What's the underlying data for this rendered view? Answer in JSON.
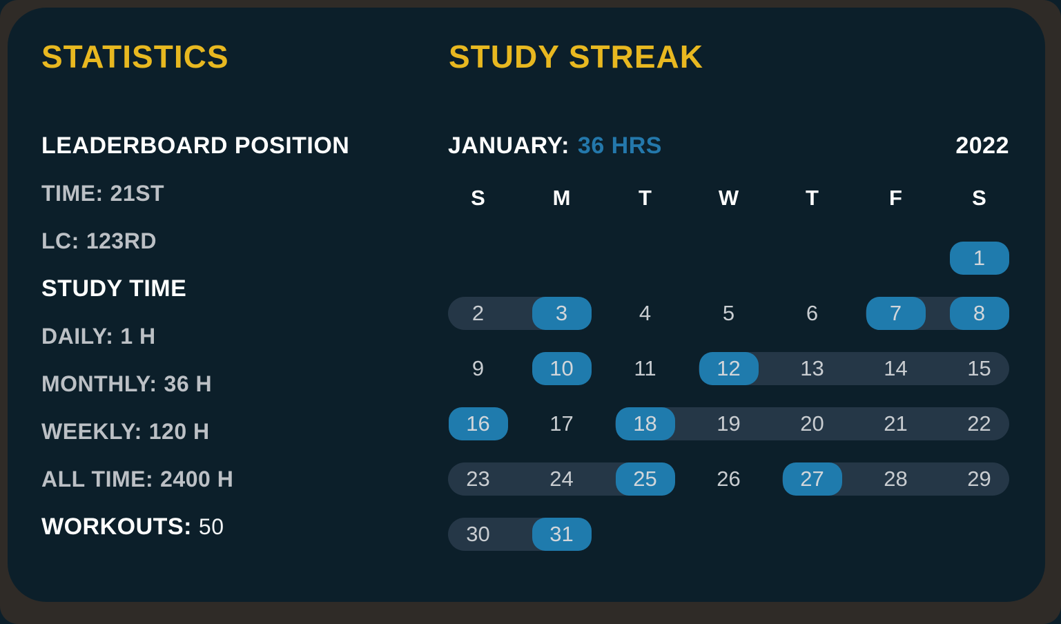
{
  "colors": {
    "frame": "#2F2B27",
    "card_background": "#0C1F2A",
    "accent_yellow": "#E8B820",
    "accent_blue": "#2478AB",
    "studied_pill_blue": "#1F7BAD",
    "streak_band": "#253747",
    "heading_text": "#FFFFFF",
    "muted_text": "#BCC0C5",
    "day_text": "#C9CDD1"
  },
  "statistics": {
    "title": "STATISTICS",
    "lines": [
      {
        "name": "leaderboard-position-heading",
        "variant": "heading",
        "label": "LEADERBOARD POSITION",
        "value": ""
      },
      {
        "name": "leaderboard-time-rank",
        "variant": "muted",
        "label": "TIME:",
        "value": "21ST"
      },
      {
        "name": "leaderboard-lc-rank",
        "variant": "muted",
        "label": "LC:",
        "value": "123RD"
      },
      {
        "name": "study-time-heading",
        "variant": "heading",
        "label": "STUDY TIME",
        "value": ""
      },
      {
        "name": "study-time-daily",
        "variant": "muted",
        "label": "DAILY:",
        "value": "1 H"
      },
      {
        "name": "study-time-monthly",
        "variant": "muted",
        "label": "MONTHLY:",
        "value": "36 H"
      },
      {
        "name": "study-time-weekly",
        "variant": "muted",
        "label": "WEEKLY:",
        "value": "120 H"
      },
      {
        "name": "study-time-alltime",
        "variant": "muted",
        "label": "ALL TIME:",
        "value": "2400 H"
      },
      {
        "name": "workouts-count",
        "variant": "mixed",
        "label": "WORKOUTS:",
        "value": "50"
      }
    ]
  },
  "streak": {
    "title": "STUDY STREAK",
    "month_label": "JANUARY:",
    "month_hours": "36 HRS",
    "year": "2022",
    "day_headers": [
      "S",
      "M",
      "T",
      "W",
      "T",
      "F",
      "S"
    ],
    "weeks": [
      {
        "bands": [],
        "days": [
          {
            "num": "1",
            "col": 7,
            "studied": true
          }
        ]
      },
      {
        "bands": [
          {
            "from": 1,
            "to": 2
          },
          {
            "from": 6,
            "to": 7
          }
        ],
        "days": [
          {
            "num": "2",
            "col": 1,
            "studied": false
          },
          {
            "num": "3",
            "col": 2,
            "studied": true
          },
          {
            "num": "4",
            "col": 3,
            "studied": false
          },
          {
            "num": "5",
            "col": 4,
            "studied": false
          },
          {
            "num": "6",
            "col": 5,
            "studied": false
          },
          {
            "num": "7",
            "col": 6,
            "studied": true
          },
          {
            "num": "8",
            "col": 7,
            "studied": true
          }
        ]
      },
      {
        "bands": [
          {
            "from": 4,
            "to": 7
          }
        ],
        "days": [
          {
            "num": "9",
            "col": 1,
            "studied": false
          },
          {
            "num": "10",
            "col": 2,
            "studied": true
          },
          {
            "num": "11",
            "col": 3,
            "studied": false
          },
          {
            "num": "12",
            "col": 4,
            "studied": true
          },
          {
            "num": "13",
            "col": 5,
            "studied": false
          },
          {
            "num": "14",
            "col": 6,
            "studied": false
          },
          {
            "num": "15",
            "col": 7,
            "studied": false
          }
        ]
      },
      {
        "bands": [
          {
            "from": 3,
            "to": 7
          }
        ],
        "days": [
          {
            "num": "16",
            "col": 1,
            "studied": true
          },
          {
            "num": "17",
            "col": 2,
            "studied": false
          },
          {
            "num": "18",
            "col": 3,
            "studied": true
          },
          {
            "num": "19",
            "col": 4,
            "studied": false
          },
          {
            "num": "20",
            "col": 5,
            "studied": false
          },
          {
            "num": "21",
            "col": 6,
            "studied": false
          },
          {
            "num": "22",
            "col": 7,
            "studied": false
          }
        ]
      },
      {
        "bands": [
          {
            "from": 1,
            "to": 3
          },
          {
            "from": 5,
            "to": 7
          }
        ],
        "days": [
          {
            "num": "23",
            "col": 1,
            "studied": false
          },
          {
            "num": "24",
            "col": 2,
            "studied": false
          },
          {
            "num": "25",
            "col": 3,
            "studied": true
          },
          {
            "num": "26",
            "col": 4,
            "studied": false
          },
          {
            "num": "27",
            "col": 5,
            "studied": true
          },
          {
            "num": "28",
            "col": 6,
            "studied": false
          },
          {
            "num": "29",
            "col": 7,
            "studied": false
          }
        ]
      },
      {
        "bands": [
          {
            "from": 1,
            "to": 2
          }
        ],
        "days": [
          {
            "num": "30",
            "col": 1,
            "studied": false
          },
          {
            "num": "31",
            "col": 2,
            "studied": true
          }
        ]
      }
    ]
  }
}
